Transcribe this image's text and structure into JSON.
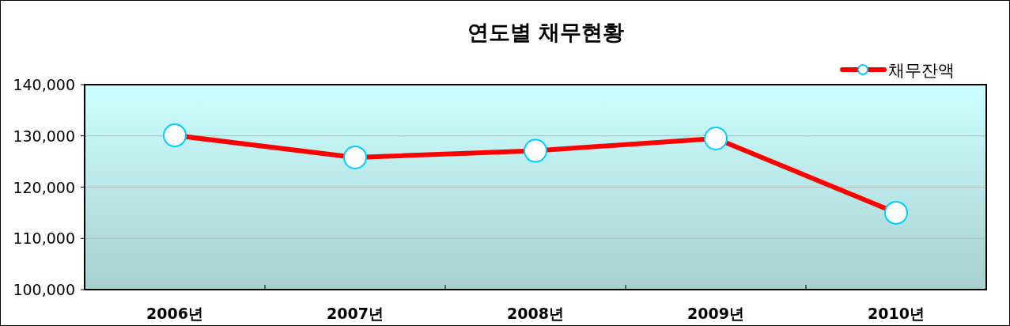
{
  "chart_data": {
    "type": "line",
    "title": "연도별 채무현황",
    "categories": [
      "2006년",
      "2007년",
      "2008년",
      "2009년",
      "2010년"
    ],
    "series": [
      {
        "name": "채무잔액",
        "color": "#ff0000",
        "values": [
          130100,
          125800,
          127100,
          129500,
          115000
        ]
      }
    ],
    "ylim": [
      100000,
      140000
    ],
    "yticks": [
      {
        "value": 100000,
        "label": "100,000"
      },
      {
        "value": 110000,
        "label": "110,000"
      },
      {
        "value": 120000,
        "label": "120,000"
      },
      {
        "value": 130000,
        "label": "130,000"
      },
      {
        "value": 140000,
        "label": "140,000"
      }
    ],
    "grid": "y",
    "legend": "top right",
    "marker": "circle"
  }
}
